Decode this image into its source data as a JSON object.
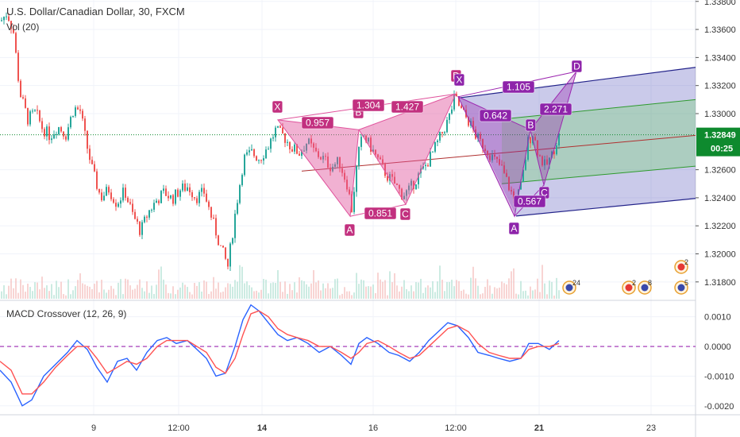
{
  "header": {
    "title": "U.S. Dollar/Canadian Dollar, 30, FXCM",
    "volume_label": "Vol (20)",
    "macd_label": "MACD Crossover (12, 26, 9)"
  },
  "colors": {
    "up": "#26a69a",
    "down": "#ef5350",
    "pattern1": "#e0529c",
    "pattern2": "#9c27b0",
    "channel_blue": "#3f3fb4",
    "channel_green": "#7bd37b",
    "macd_line": "#2962ff",
    "signal_line": "#ff5252",
    "current_price": "#0e8a2e"
  },
  "chart_data": [
    {
      "type": "candlestick",
      "title": "U.S. Dollar/Canadian Dollar, 30, FXCM",
      "y_axis": {
        "range": [
          1.3168,
          1.3381
        ],
        "ticks": [
          "1.33800",
          "1.33600",
          "1.33400",
          "1.33200",
          "1.33000",
          "1.32600",
          "1.32400",
          "1.32200",
          "1.32000",
          "1.31800"
        ]
      },
      "current_price": {
        "label": "1.32849",
        "value": 1.32849,
        "countdown": "00:25"
      },
      "price_path": [
        [
          0,
          1.3366
        ],
        [
          8,
          1.3372
        ],
        [
          16,
          1.3358
        ],
        [
          24,
          1.3315
        ],
        [
          34,
          1.3296
        ],
        [
          44,
          1.3301
        ],
        [
          52,
          1.329
        ],
        [
          62,
          1.3284
        ],
        [
          72,
          1.3291
        ],
        [
          82,
          1.3285
        ],
        [
          92,
          1.3304
        ],
        [
          100,
          1.3302
        ],
        [
          108,
          1.3278
        ],
        [
          116,
          1.3258
        ],
        [
          126,
          1.324
        ],
        [
          136,
          1.3246
        ],
        [
          146,
          1.3236
        ],
        [
          156,
          1.3245
        ],
        [
          166,
          1.3228
        ],
        [
          176,
          1.3216
        ],
        [
          186,
          1.323
        ],
        [
          196,
          1.3238
        ],
        [
          206,
          1.3244
        ],
        [
          216,
          1.3239
        ],
        [
          226,
          1.3246
        ],
        [
          236,
          1.3248
        ],
        [
          246,
          1.324
        ],
        [
          256,
          1.3244
        ],
        [
          266,
          1.3225
        ],
        [
          276,
          1.3206
        ],
        [
          286,
          1.3191
        ],
        [
          296,
          1.3232
        ],
        [
          306,
          1.3268
        ],
        [
          316,
          1.3272
        ],
        [
          326,
          1.3268
        ],
        [
          336,
          1.3276
        ],
        [
          346,
          1.3288
        ],
        [
          356,
          1.3284
        ],
        [
          366,
          1.3276
        ],
        [
          376,
          1.3272
        ],
        [
          386,
          1.328
        ],
        [
          396,
          1.3272
        ],
        [
          406,
          1.3268
        ],
        [
          416,
          1.3262
        ],
        [
          426,
          1.3266
        ],
        [
          436,
          1.325
        ],
        [
          442,
          1.3232
        ],
        [
          450,
          1.327
        ],
        [
          456,
          1.3285
        ],
        [
          466,
          1.3276
        ],
        [
          476,
          1.3266
        ],
        [
          486,
          1.3256
        ],
        [
          496,
          1.325
        ],
        [
          506,
          1.3242
        ],
        [
          514,
          1.3245
        ],
        [
          524,
          1.3254
        ],
        [
          534,
          1.3262
        ],
        [
          544,
          1.3272
        ],
        [
          554,
          1.3284
        ],
        [
          564,
          1.3296
        ],
        [
          572,
          1.3312
        ],
        [
          580,
          1.3302
        ],
        [
          590,
          1.3294
        ],
        [
          600,
          1.3282
        ],
        [
          610,
          1.3276
        ],
        [
          620,
          1.3268
        ],
        [
          630,
          1.3262
        ],
        [
          640,
          1.3248
        ],
        [
          648,
          1.3236
        ],
        [
          656,
          1.325
        ],
        [
          664,
          1.328
        ],
        [
          670,
          1.3286
        ],
        [
          678,
          1.327
        ],
        [
          686,
          1.3262
        ],
        [
          694,
          1.327
        ],
        [
          702,
          1.3284
        ]
      ],
      "patterns": [
        {
          "name": "pattern1",
          "points": [
            {
              "label": "X",
              "value": 1.32955
            },
            {
              "label": "A",
              "value": 1.32268
            },
            {
              "label": "B",
              "value": 1.32885
            },
            {
              "label": "C",
              "value": 1.32352
            },
            {
              "label": "D",
              "value": 1.3314
            }
          ],
          "ratios": [
            "0.957",
            "1.304",
            "0.851",
            "1.427"
          ]
        },
        {
          "name": "pattern2",
          "points": [
            {
              "label": "X",
              "value": 1.3312
            },
            {
              "label": "A",
              "value": 1.32268
            },
            {
              "label": "B",
              "value": 1.32885
            },
            {
              "label": "C",
              "value": 1.32491
            },
            {
              "label": "D",
              "value": 1.333
            }
          ],
          "ratios": [
            "0.642",
            "0.567",
            "1.105",
            "2.271"
          ]
        }
      ],
      "event_icons": [
        {
          "count": "24"
        },
        {
          "count": "2"
        },
        {
          "count": "8"
        },
        {
          "count": "2"
        },
        {
          "count": "5"
        }
      ]
    },
    {
      "type": "line",
      "title": "MACD Crossover (12, 26, 9)",
      "y_axis": {
        "range": [
          -0.0023,
          0.0015
        ],
        "ticks": [
          "0.0010",
          "0.0000",
          "-0.0010",
          "-0.0020"
        ]
      },
      "series": [
        {
          "name": "MACD",
          "values": [
            [
              0,
              -0.0008
            ],
            [
              14,
              -0.0012
            ],
            [
              28,
              -0.002
            ],
            [
              40,
              -0.0018
            ],
            [
              55,
              -0.001
            ],
            [
              70,
              -0.0006
            ],
            [
              85,
              -0.0002
            ],
            [
              97,
              0.0002
            ],
            [
              110,
              -0.0001
            ],
            [
              122,
              -0.0007
            ],
            [
              135,
              -0.0012
            ],
            [
              148,
              -0.0005
            ],
            [
              160,
              -0.0004
            ],
            [
              172,
              -0.0008
            ],
            [
              185,
              -0.0002
            ],
            [
              198,
              0.0002
            ],
            [
              210,
              0.0003
            ],
            [
              222,
              0.0001
            ],
            [
              236,
              0.0002
            ],
            [
              248,
              -0.0001
            ],
            [
              260,
              -0.0004
            ],
            [
              272,
              -0.001
            ],
            [
              284,
              -0.0009
            ],
            [
              296,
              0.0
            ],
            [
              306,
              0.0009
            ],
            [
              316,
              0.0014
            ],
            [
              326,
              0.0012
            ],
            [
              338,
              0.0008
            ],
            [
              350,
              0.0004
            ],
            [
              362,
              0.0002
            ],
            [
              374,
              0.0003
            ],
            [
              388,
              0.0001
            ],
            [
              402,
              -0.0002
            ],
            [
              416,
              0.0
            ],
            [
              430,
              -0.0003
            ],
            [
              442,
              -0.0006
            ],
            [
              452,
              0.0001
            ],
            [
              462,
              0.0003
            ],
            [
              476,
              0.0001
            ],
            [
              490,
              -0.0002
            ],
            [
              502,
              -0.0003
            ],
            [
              516,
              -0.0005
            ],
            [
              528,
              -0.0002
            ],
            [
              540,
              0.0002
            ],
            [
              552,
              0.0005
            ],
            [
              564,
              0.0008
            ],
            [
              576,
              0.0007
            ],
            [
              590,
              0.0003
            ],
            [
              602,
              -0.0002
            ],
            [
              616,
              -0.0003
            ],
            [
              628,
              -0.0004
            ],
            [
              642,
              -0.0005
            ],
            [
              656,
              -0.0004
            ],
            [
              666,
              0.0001
            ],
            [
              678,
              0.0001
            ],
            [
              692,
              -0.0001
            ],
            [
              704,
              0.0002
            ]
          ]
        },
        {
          "name": "Signal",
          "values": [
            [
              0,
              -0.0005
            ],
            [
              14,
              -0.0008
            ],
            [
              28,
              -0.0016
            ],
            [
              40,
              -0.0016
            ],
            [
              55,
              -0.0012
            ],
            [
              70,
              -0.0007
            ],
            [
              85,
              -0.0003
            ],
            [
              97,
              0.0
            ],
            [
              110,
              0.0
            ],
            [
              122,
              -0.0004
            ],
            [
              135,
              -0.0009
            ],
            [
              148,
              -0.0007
            ],
            [
              160,
              -0.0005
            ],
            [
              172,
              -0.0006
            ],
            [
              185,
              -0.0004
            ],
            [
              198,
              0.0
            ],
            [
              210,
              0.0002
            ],
            [
              222,
              0.0002
            ],
            [
              236,
              0.0002
            ],
            [
              248,
              0.0
            ],
            [
              260,
              -0.0002
            ],
            [
              272,
              -0.0007
            ],
            [
              284,
              -0.0009
            ],
            [
              296,
              -0.0004
            ],
            [
              306,
              0.0004
            ],
            [
              316,
              0.0011
            ],
            [
              326,
              0.0012
            ],
            [
              338,
              0.001
            ],
            [
              350,
              0.0006
            ],
            [
              362,
              0.0004
            ],
            [
              374,
              0.0003
            ],
            [
              388,
              0.0002
            ],
            [
              402,
              0.0
            ],
            [
              416,
              0.0
            ],
            [
              430,
              -0.0002
            ],
            [
              442,
              -0.0004
            ],
            [
              452,
              -0.0002
            ],
            [
              462,
              0.0001
            ],
            [
              476,
              0.0002
            ],
            [
              490,
              0.0
            ],
            [
              502,
              -0.0002
            ],
            [
              516,
              -0.0004
            ],
            [
              528,
              -0.0003
            ],
            [
              540,
              0.0
            ],
            [
              552,
              0.0003
            ],
            [
              564,
              0.0006
            ],
            [
              576,
              0.0007
            ],
            [
              590,
              0.0005
            ],
            [
              602,
              0.0001
            ],
            [
              616,
              -0.0002
            ],
            [
              628,
              -0.0003
            ],
            [
              642,
              -0.0004
            ],
            [
              656,
              -0.0004
            ],
            [
              666,
              -0.0001
            ],
            [
              678,
              0.0
            ],
            [
              692,
              0.0
            ],
            [
              704,
              0.0001
            ]
          ]
        }
      ],
      "zero_line": 0.0
    }
  ],
  "x_axis": {
    "ticks": [
      "9",
      "12:00",
      "14",
      "16",
      "12:00",
      "21",
      "23"
    ],
    "bold_ticks": [
      "14",
      "21"
    ]
  }
}
